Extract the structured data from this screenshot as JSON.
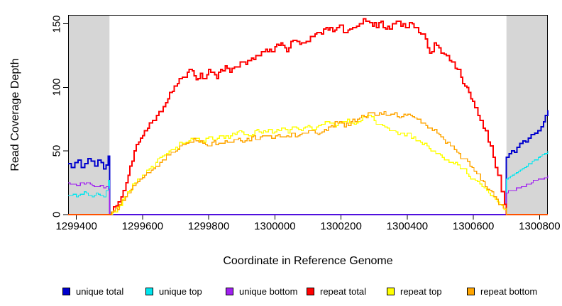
{
  "chart_data": {
    "type": "line",
    "title": "",
    "xlabel": "Coordinate in Reference Genome",
    "ylabel": "Read Coverage Depth",
    "x_range": [
      1299375,
      1300825
    ],
    "y_range": [
      0,
      157
    ],
    "x_ticks": [
      1299400,
      1299600,
      1299800,
      1300000,
      1300200,
      1300400,
      1300600,
      1300800
    ],
    "y_ticks": [
      0,
      50,
      100,
      150
    ],
    "grid": false,
    "legend_position": "bottom",
    "shaded_regions": [
      {
        "from": 1299375,
        "to": 1299500,
        "color": "#d6d6d6"
      },
      {
        "from": 1300700,
        "to": 1300825,
        "color": "#d6d6d6"
      }
    ],
    "series": [
      {
        "key": "unique-total",
        "name": "unique total",
        "color": "#0000cd",
        "width": 2,
        "jitter": 1.2,
        "points": [
          [
            1299375,
            40
          ],
          [
            1299385,
            37
          ],
          [
            1299395,
            41
          ],
          [
            1299405,
            43
          ],
          [
            1299415,
            37
          ],
          [
            1299425,
            40
          ],
          [
            1299435,
            44
          ],
          [
            1299445,
            42
          ],
          [
            1299455,
            38
          ],
          [
            1299465,
            43
          ],
          [
            1299475,
            41
          ],
          [
            1299482,
            36
          ],
          [
            1299490,
            39
          ],
          [
            1299496,
            46
          ],
          [
            1299500,
            46
          ],
          [
            1299500,
            0
          ],
          [
            1300700,
            0
          ],
          [
            1300700,
            45
          ],
          [
            1300708,
            48
          ],
          [
            1300716,
            50
          ],
          [
            1300724,
            49
          ],
          [
            1300732,
            53
          ],
          [
            1300740,
            56
          ],
          [
            1300750,
            58
          ],
          [
            1300758,
            57
          ],
          [
            1300766,
            60
          ],
          [
            1300775,
            63
          ],
          [
            1300785,
            64
          ],
          [
            1300795,
            66
          ],
          [
            1300805,
            69
          ],
          [
            1300812,
            73
          ],
          [
            1300818,
            78
          ],
          [
            1300825,
            82
          ]
        ]
      },
      {
        "key": "unique-top",
        "name": "unique top",
        "color": "#00e5ee",
        "width": 1.2,
        "jitter": 1,
        "points": [
          [
            1299375,
            15
          ],
          [
            1299390,
            16
          ],
          [
            1299400,
            14
          ],
          [
            1299412,
            16
          ],
          [
            1299424,
            18
          ],
          [
            1299436,
            15
          ],
          [
            1299448,
            14
          ],
          [
            1299460,
            17
          ],
          [
            1299472,
            15
          ],
          [
            1299482,
            14
          ],
          [
            1299490,
            19
          ],
          [
            1299496,
            27
          ],
          [
            1299500,
            27
          ],
          [
            1299500,
            0
          ],
          [
            1300700,
            0
          ],
          [
            1300700,
            28
          ],
          [
            1300712,
            30
          ],
          [
            1300724,
            32
          ],
          [
            1300736,
            34
          ],
          [
            1300748,
            36
          ],
          [
            1300760,
            38
          ],
          [
            1300772,
            40
          ],
          [
            1300784,
            43
          ],
          [
            1300796,
            45
          ],
          [
            1300808,
            47
          ],
          [
            1300816,
            48
          ],
          [
            1300825,
            50
          ]
        ]
      },
      {
        "key": "unique-bottom",
        "name": "unique bottom",
        "color": "#a020f0",
        "width": 1.2,
        "jitter": 1,
        "points": [
          [
            1299375,
            25
          ],
          [
            1299388,
            24
          ],
          [
            1299400,
            23
          ],
          [
            1299412,
            25
          ],
          [
            1299424,
            24
          ],
          [
            1299436,
            25
          ],
          [
            1299448,
            23
          ],
          [
            1299460,
            22
          ],
          [
            1299472,
            23
          ],
          [
            1299482,
            21
          ],
          [
            1299490,
            22
          ],
          [
            1299497,
            20
          ],
          [
            1299500,
            20
          ],
          [
            1299500,
            0
          ],
          [
            1300700,
            0
          ],
          [
            1300700,
            17
          ],
          [
            1300715,
            19
          ],
          [
            1300730,
            21
          ],
          [
            1300745,
            22
          ],
          [
            1300760,
            24
          ],
          [
            1300775,
            25
          ],
          [
            1300790,
            27
          ],
          [
            1300805,
            28
          ],
          [
            1300815,
            29
          ],
          [
            1300825,
            31
          ]
        ]
      },
      {
        "key": "repeat-total",
        "name": "repeat total",
        "color": "#ff0000",
        "width": 2,
        "jitter": 2.5,
        "points": [
          [
            1299375,
            0
          ],
          [
            1299500,
            0
          ],
          [
            1299506,
            2
          ],
          [
            1299520,
            7
          ],
          [
            1299535,
            14
          ],
          [
            1299550,
            25
          ],
          [
            1299562,
            38
          ],
          [
            1299575,
            50
          ],
          [
            1299588,
            57
          ],
          [
            1299600,
            62
          ],
          [
            1299615,
            68
          ],
          [
            1299630,
            74
          ],
          [
            1299650,
            81
          ],
          [
            1299670,
            88
          ],
          [
            1299690,
            97
          ],
          [
            1299705,
            103
          ],
          [
            1299720,
            108
          ],
          [
            1299735,
            112
          ],
          [
            1299750,
            113
          ],
          [
            1299762,
            106
          ],
          [
            1299775,
            111
          ],
          [
            1299788,
            107
          ],
          [
            1299800,
            114
          ],
          [
            1299812,
            112
          ],
          [
            1299824,
            107
          ],
          [
            1299836,
            114
          ],
          [
            1299850,
            117
          ],
          [
            1299864,
            112
          ],
          [
            1299878,
            116
          ],
          [
            1299895,
            120
          ],
          [
            1299912,
            118
          ],
          [
            1299930,
            123
          ],
          [
            1299948,
            125
          ],
          [
            1299966,
            128
          ],
          [
            1299984,
            130
          ],
          [
            1300000,
            132
          ],
          [
            1300018,
            135
          ],
          [
            1300036,
            128
          ],
          [
            1300055,
            137
          ],
          [
            1300075,
            134
          ],
          [
            1300095,
            136
          ],
          [
            1300115,
            140
          ],
          [
            1300135,
            143
          ],
          [
            1300155,
            147
          ],
          [
            1300175,
            144
          ],
          [
            1300195,
            149
          ],
          [
            1300215,
            143
          ],
          [
            1300235,
            147
          ],
          [
            1300255,
            150
          ],
          [
            1300275,
            152
          ],
          [
            1300295,
            148
          ],
          [
            1300315,
            151
          ],
          [
            1300335,
            146
          ],
          [
            1300355,
            150
          ],
          [
            1300375,
            152
          ],
          [
            1300395,
            147
          ],
          [
            1300415,
            150
          ],
          [
            1300435,
            143
          ],
          [
            1300455,
            138
          ],
          [
            1300468,
            127
          ],
          [
            1300482,
            135
          ],
          [
            1300496,
            131
          ],
          [
            1300512,
            126
          ],
          [
            1300528,
            121
          ],
          [
            1300545,
            115
          ],
          [
            1300562,
            108
          ],
          [
            1300580,
            100
          ],
          [
            1300598,
            89
          ],
          [
            1300614,
            78
          ],
          [
            1300630,
            68
          ],
          [
            1300645,
            57
          ],
          [
            1300660,
            45
          ],
          [
            1300674,
            31
          ],
          [
            1300685,
            18
          ],
          [
            1300694,
            8
          ],
          [
            1300700,
            0
          ],
          [
            1300825,
            0
          ]
        ]
      },
      {
        "key": "repeat-top",
        "name": "repeat top",
        "color": "#ffff00",
        "width": 1.4,
        "jitter": 2,
        "points": [
          [
            1299375,
            0
          ],
          [
            1299500,
            0
          ],
          [
            1299510,
            2
          ],
          [
            1299525,
            6
          ],
          [
            1299540,
            12
          ],
          [
            1299555,
            18
          ],
          [
            1299570,
            24
          ],
          [
            1299585,
            28
          ],
          [
            1299600,
            31
          ],
          [
            1299620,
            36
          ],
          [
            1299640,
            41
          ],
          [
            1299660,
            46
          ],
          [
            1299680,
            50
          ],
          [
            1299700,
            53
          ],
          [
            1299720,
            56
          ],
          [
            1299740,
            58
          ],
          [
            1299760,
            60
          ],
          [
            1299780,
            58
          ],
          [
            1299800,
            61
          ],
          [
            1299820,
            59
          ],
          [
            1299840,
            62
          ],
          [
            1299860,
            60
          ],
          [
            1299880,
            63
          ],
          [
            1299900,
            65
          ],
          [
            1299920,
            62
          ],
          [
            1299940,
            66
          ],
          [
            1299960,
            64
          ],
          [
            1299980,
            67
          ],
          [
            1300000,
            65
          ],
          [
            1300020,
            68
          ],
          [
            1300040,
            64
          ],
          [
            1300060,
            69
          ],
          [
            1300080,
            66
          ],
          [
            1300100,
            70
          ],
          [
            1300120,
            67
          ],
          [
            1300140,
            71
          ],
          [
            1300160,
            73
          ],
          [
            1300180,
            69
          ],
          [
            1300200,
            72
          ],
          [
            1300220,
            75
          ],
          [
            1300240,
            71
          ],
          [
            1300260,
            74
          ],
          [
            1300280,
            78
          ],
          [
            1300300,
            74
          ],
          [
            1300320,
            71
          ],
          [
            1300340,
            68
          ],
          [
            1300360,
            66
          ],
          [
            1300380,
            64
          ],
          [
            1300400,
            64
          ],
          [
            1300420,
            61
          ],
          [
            1300440,
            57
          ],
          [
            1300460,
            54
          ],
          [
            1300480,
            50
          ],
          [
            1300500,
            47
          ],
          [
            1300520,
            43
          ],
          [
            1300540,
            40
          ],
          [
            1300560,
            36
          ],
          [
            1300580,
            32
          ],
          [
            1300600,
            28
          ],
          [
            1300620,
            24
          ],
          [
            1300640,
            19
          ],
          [
            1300660,
            14
          ],
          [
            1300680,
            8
          ],
          [
            1300692,
            4
          ],
          [
            1300700,
            0
          ],
          [
            1300825,
            0
          ]
        ]
      },
      {
        "key": "repeat-bottom",
        "name": "repeat bottom",
        "color": "#ffa500",
        "width": 1.4,
        "jitter": 2,
        "points": [
          [
            1299375,
            0
          ],
          [
            1299500,
            0
          ],
          [
            1299512,
            3
          ],
          [
            1299530,
            8
          ],
          [
            1299548,
            14
          ],
          [
            1299565,
            20
          ],
          [
            1299580,
            25
          ],
          [
            1299600,
            29
          ],
          [
            1299620,
            33
          ],
          [
            1299640,
            38
          ],
          [
            1299660,
            43
          ],
          [
            1299680,
            47
          ],
          [
            1299700,
            50
          ],
          [
            1299720,
            55
          ],
          [
            1299740,
            57
          ],
          [
            1299755,
            60
          ],
          [
            1299770,
            57
          ],
          [
            1299790,
            55
          ],
          [
            1299810,
            57
          ],
          [
            1299830,
            56
          ],
          [
            1299850,
            58
          ],
          [
            1299870,
            57
          ],
          [
            1299890,
            60
          ],
          [
            1299910,
            58
          ],
          [
            1299930,
            61
          ],
          [
            1299950,
            59
          ],
          [
            1299970,
            62
          ],
          [
            1299990,
            60
          ],
          [
            1300010,
            63
          ],
          [
            1300030,
            61
          ],
          [
            1300050,
            64
          ],
          [
            1300070,
            62
          ],
          [
            1300090,
            64
          ],
          [
            1300110,
            66
          ],
          [
            1300130,
            63
          ],
          [
            1300150,
            67
          ],
          [
            1300170,
            70
          ],
          [
            1300190,
            72
          ],
          [
            1300210,
            69
          ],
          [
            1300230,
            73
          ],
          [
            1300250,
            75
          ],
          [
            1300270,
            77
          ],
          [
            1300290,
            80
          ],
          [
            1300310,
            78
          ],
          [
            1300330,
            81
          ],
          [
            1300350,
            79
          ],
          [
            1300370,
            77
          ],
          [
            1300390,
            79
          ],
          [
            1300410,
            78
          ],
          [
            1300430,
            75
          ],
          [
            1300450,
            72
          ],
          [
            1300470,
            68
          ],
          [
            1300490,
            64
          ],
          [
            1300510,
            59
          ],
          [
            1300530,
            54
          ],
          [
            1300550,
            49
          ],
          [
            1300570,
            44
          ],
          [
            1300590,
            38
          ],
          [
            1300610,
            32
          ],
          [
            1300630,
            26
          ],
          [
            1300650,
            19
          ],
          [
            1300670,
            12
          ],
          [
            1300690,
            5
          ],
          [
            1300700,
            0
          ],
          [
            1300825,
            0
          ]
        ]
      }
    ]
  }
}
